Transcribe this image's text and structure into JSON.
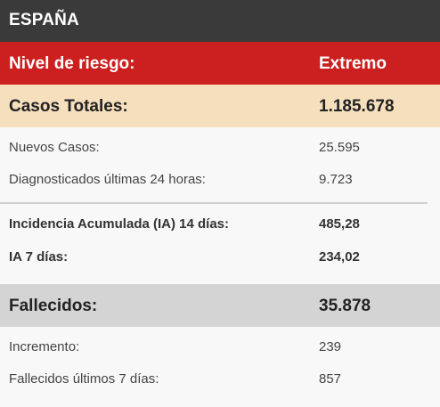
{
  "header": {
    "title": "ESPAÑA"
  },
  "risk": {
    "label": "Nivel de riesgo:",
    "value": "Extremo"
  },
  "cases": {
    "label": "Casos Totales:",
    "value": "1.185.678",
    "rows": [
      {
        "label": "Nuevos Casos:",
        "value": "25.595"
      },
      {
        "label": "Diagnosticados últimas 24 horas:",
        "value": "9.723"
      }
    ]
  },
  "incidence": {
    "rows": [
      {
        "label": "Incidencia Acumulada (IA) 14 días:",
        "value": "485,28"
      },
      {
        "label": "IA 7 días:",
        "value": "234,02"
      }
    ]
  },
  "deaths": {
    "label": "Fallecidos:",
    "value": "35.878",
    "rows": [
      {
        "label": "Incremento:",
        "value": "239"
      },
      {
        "label": "Fallecidos últimos 7 días:",
        "value": "857"
      }
    ]
  },
  "colors": {
    "header_bg": "#3a3a3a",
    "risk_bg": "#cc1f1f",
    "cases_bg": "#f5dfbd",
    "deaths_bg": "#d4d4d4"
  }
}
